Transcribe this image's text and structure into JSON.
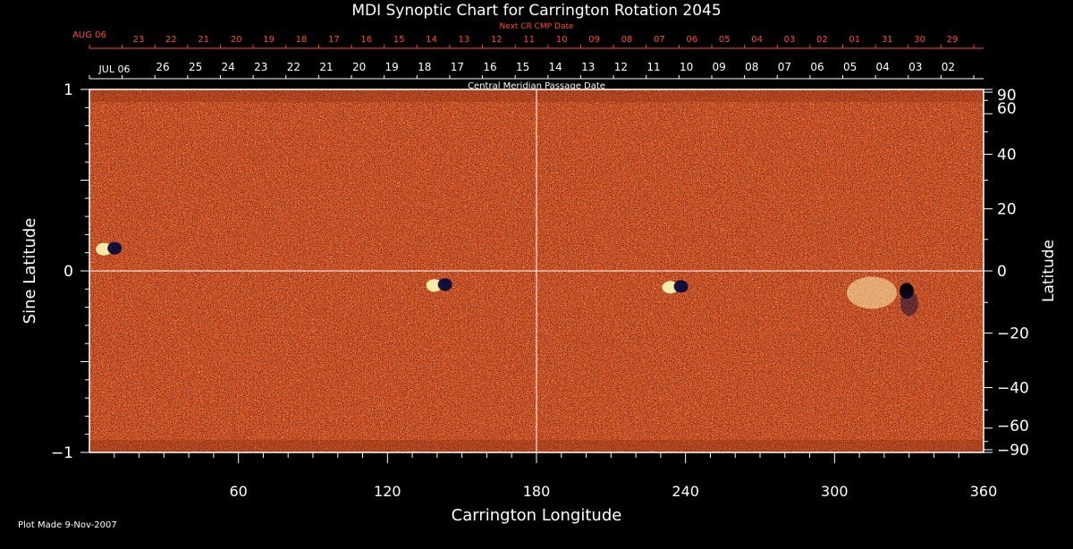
{
  "chart_data": {
    "type": "heatmap",
    "title": "MDI Synoptic Chart for Carrington Rotation 2045",
    "xlabel": "Carrington Longitude",
    "ylabel_left": "Sine Latitude",
    "ylabel_right": "Latitude",
    "xlim": [
      0,
      360
    ],
    "ylim": [
      -1,
      1
    ],
    "x_ticks": [
      60,
      120,
      180,
      240,
      300,
      360
    ],
    "y_ticks_left": [
      {
        "value": 1,
        "label": "1"
      },
      {
        "value": 0,
        "label": "0"
      },
      {
        "value": -1,
        "label": "−1"
      }
    ],
    "y_ticks_right": [
      {
        "deg": 90,
        "label": "90"
      },
      {
        "deg": 60,
        "label": "60"
      },
      {
        "deg": 40,
        "label": "40"
      },
      {
        "deg": 20,
        "label": "20"
      },
      {
        "deg": 0,
        "label": "0"
      },
      {
        "deg": -20,
        "label": "−20"
      },
      {
        "deg": -40,
        "label": "−40"
      },
      {
        "deg": -60,
        "label": "−60"
      },
      {
        "deg": -90,
        "label": "−90"
      }
    ],
    "next_cr_label": "Next CR CMP Date",
    "next_cr_month": "AUG 06",
    "next_cr_dates": [
      "23",
      "22",
      "21",
      "20",
      "19",
      "18",
      "17",
      "16",
      "15",
      "14",
      "13",
      "12",
      "11",
      "10",
      "09",
      "08",
      "07",
      "06",
      "05",
      "04",
      "03",
      "02",
      "01",
      "31",
      "30",
      "29"
    ],
    "cmp_label": "Central Meridian Passage Date",
    "cmp_month": "JUL 06",
    "cmp_dates": [
      "26",
      "25",
      "24",
      "23",
      "22",
      "21",
      "20",
      "19",
      "18",
      "17",
      "16",
      "15",
      "14",
      "13",
      "12",
      "11",
      "10",
      "09",
      "08",
      "07",
      "06",
      "05",
      "04",
      "03",
      "02"
    ],
    "active_regions": [
      {
        "lon": 8,
        "sinlat": 0.12,
        "polarity": "mixed"
      },
      {
        "lon": 141,
        "sinlat": -0.08,
        "polarity": "mixed"
      },
      {
        "lon": 236,
        "sinlat": -0.09,
        "polarity": "mixed"
      },
      {
        "lon": 315,
        "sinlat": -0.12,
        "polarity": "positive"
      },
      {
        "lon": 329,
        "sinlat": -0.11,
        "polarity": "negative"
      }
    ],
    "grid": "center cross at 180 longitude and 0 sine latitude"
  },
  "footer": {
    "plot_made": "Plot Made  9-Nov-2007"
  },
  "colors": {
    "background": "#000000",
    "field_base": "#e8501a",
    "positive": "#fff2b0",
    "negative": "#0a0a3c",
    "top_axis_red": "#ff4a2a"
  }
}
